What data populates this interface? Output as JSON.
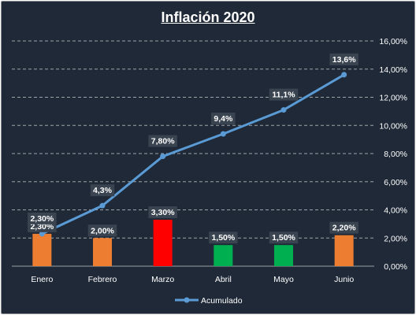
{
  "chart_data": {
    "type": "bar+line",
    "title": "Inflación  2020",
    "categories": [
      "Enero",
      "Febrero",
      "Marzo",
      "Abril",
      "Mayo",
      "Junio"
    ],
    "series": [
      {
        "type": "bar",
        "values": [
          2.3,
          2.0,
          3.3,
          1.5,
          1.5,
          2.2
        ],
        "labels": [
          "2,30%",
          "2,00%",
          "3,30%",
          "1,50%",
          "1,50%",
          "2,20%"
        ],
        "colors": [
          "#ed7d31",
          "#ed7d31",
          "#ff0000",
          "#00b050",
          "#00b050",
          "#ed7d31"
        ]
      },
      {
        "type": "line",
        "name": "Acumulado",
        "values": [
          2.3,
          4.3,
          7.8,
          9.4,
          11.1,
          13.6
        ],
        "labels": [
          "2,30%",
          "4,3%",
          "7,80%",
          "9,4%",
          "11,1%",
          "13,6%"
        ],
        "color": "#5b9bd5"
      }
    ],
    "y_axis": {
      "position": "right",
      "range": [
        0,
        16
      ],
      "ticks": [
        0,
        2,
        4,
        6,
        8,
        10,
        12,
        14,
        16
      ],
      "tick_labels": [
        "0,00%",
        "2,00%",
        "4,00%",
        "6,00%",
        "8,00%",
        "10,00%",
        "12,00%",
        "14,00%",
        "16,00%"
      ]
    },
    "grid": true,
    "legend": "bottom"
  }
}
